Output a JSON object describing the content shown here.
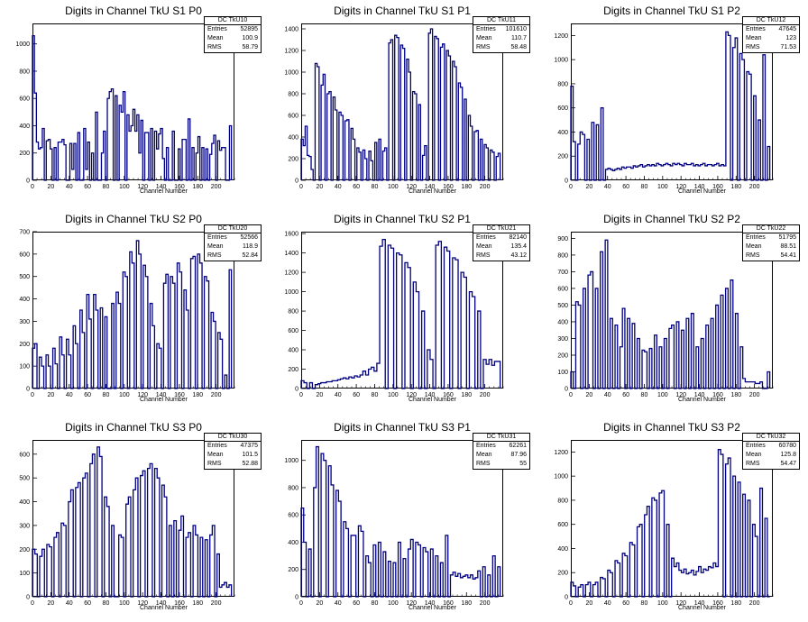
{
  "chart_data": [
    {
      "type": "histogram",
      "title": "Digits in Channel TkU S1 P0",
      "xlabel": "Channel Number",
      "stats_name": "DC_TkU10",
      "stats": {
        "Entries": "52895",
        "Mean": "100.9",
        "RMS": "58.79"
      },
      "xlim": [
        0,
        220
      ],
      "ylim": [
        0,
        1150
      ],
      "xticks": [
        0,
        20,
        40,
        60,
        80,
        100,
        120,
        140,
        160,
        180,
        200
      ],
      "yticks": [
        0,
        200,
        400,
        600,
        800,
        1000
      ],
      "values": [
        1060,
        640,
        280,
        230,
        240,
        380,
        0,
        290,
        300,
        230,
        0,
        240,
        0,
        280,
        280,
        300,
        260,
        0,
        0,
        270,
        80,
        270,
        0,
        350,
        0,
        0,
        380,
        80,
        280,
        0,
        200,
        0,
        500,
        0,
        0,
        200,
        360,
        0,
        600,
        650,
        670,
        0,
        620,
        0,
        550,
        500,
        650,
        0,
        480,
        360,
        400,
        520,
        360,
        480,
        200,
        440,
        0,
        350,
        350,
        0,
        380,
        0,
        360,
        230,
        340,
        380,
        160,
        0,
        240,
        0,
        0,
        360,
        0,
        0,
        230,
        0,
        300,
        300,
        0,
        450,
        0,
        240,
        0,
        200,
        320,
        0,
        240,
        0,
        230,
        0,
        190,
        270,
        330,
        0,
        290,
        220,
        240,
        240,
        0,
        0,
        400
      ]
    },
    {
      "type": "histogram",
      "title": "Digits in Channel TkU S1 P1",
      "xlabel": "Channel Number",
      "stats_name": "DC_TkU11",
      "stats": {
        "Entries": "101610",
        "Mean": "110.7",
        "RMS": "58.48"
      },
      "xlim": [
        0,
        220
      ],
      "ylim": [
        0,
        1450
      ],
      "xticks": [
        0,
        20,
        40,
        60,
        80,
        100,
        120,
        140,
        160,
        180,
        200
      ],
      "yticks": [
        0,
        200,
        400,
        600,
        800,
        1000,
        1200,
        1400
      ],
      "values": [
        380,
        320,
        500,
        230,
        220,
        100,
        0,
        1080,
        1050,
        0,
        880,
        980,
        0,
        800,
        820,
        0,
        770,
        650,
        0,
        630,
        600,
        0,
        550,
        560,
        0,
        480,
        380,
        0,
        300,
        260,
        0,
        280,
        200,
        0,
        270,
        180,
        0,
        350,
        0,
        380,
        0,
        270,
        300,
        0,
        1270,
        1300,
        0,
        1340,
        1320,
        0,
        1250,
        1220,
        0,
        1120,
        1000,
        0,
        820,
        800,
        0,
        700,
        0,
        230,
        320,
        0,
        1360,
        1400,
        0,
        1330,
        1310,
        0,
        1230,
        1260,
        0,
        1200,
        1150,
        0,
        1100,
        1050,
        0,
        900,
        860,
        0,
        750,
        0,
        600,
        500,
        0,
        450,
        460,
        0,
        380,
        0,
        330,
        300,
        0,
        280,
        260,
        0,
        220,
        250
      ]
    },
    {
      "type": "histogram",
      "title": "Digits in Channel TkU S1 P2",
      "xlabel": "Channel Number",
      "stats_name": "DC_TkU12",
      "stats": {
        "Entries": "47645",
        "Mean": "123",
        "RMS": "71.53"
      },
      "xlim": [
        0,
        220
      ],
      "ylim": [
        0,
        1300
      ],
      "xticks": [
        0,
        20,
        40,
        60,
        80,
        100,
        120,
        140,
        160,
        180,
        200
      ],
      "yticks": [
        0,
        200,
        400,
        600,
        800,
        1000,
        1200
      ],
      "values": [
        780,
        320,
        0,
        300,
        400,
        380,
        0,
        340,
        0,
        480,
        0,
        460,
        0,
        600,
        0,
        90,
        100,
        90,
        80,
        90,
        100,
        90,
        110,
        100,
        110,
        110,
        100,
        120,
        110,
        120,
        130,
        110,
        120,
        130,
        120,
        130,
        120,
        140,
        130,
        120,
        130,
        140,
        130,
        120,
        140,
        130,
        140,
        130,
        120,
        140,
        130,
        130,
        140,
        120,
        130,
        120,
        130,
        140,
        120,
        130,
        130,
        120,
        130,
        140,
        120,
        130,
        120,
        1230,
        1200,
        0,
        1100,
        1180,
        0,
        1050,
        1000,
        0,
        900,
        880,
        0,
        700,
        0,
        500,
        0,
        1040,
        0,
        280
      ]
    },
    {
      "type": "histogram",
      "title": "Digits in Channel TkU S2 P0",
      "xlabel": "Channel Number",
      "stats_name": "DC_TkU20",
      "stats": {
        "Entries": "52566",
        "Mean": "118.9",
        "RMS": "52.84"
      },
      "xlim": [
        0,
        220
      ],
      "ylim": [
        0,
        700
      ],
      "xticks": [
        0,
        20,
        40,
        60,
        80,
        100,
        120,
        140,
        160,
        180,
        200
      ],
      "yticks": [
        0,
        100,
        200,
        300,
        400,
        500,
        600,
        700
      ],
      "values": [
        180,
        200,
        0,
        140,
        100,
        0,
        150,
        100,
        0,
        180,
        110,
        0,
        230,
        150,
        0,
        220,
        150,
        0,
        280,
        200,
        0,
        350,
        250,
        0,
        420,
        310,
        0,
        420,
        350,
        0,
        360,
        0,
        320,
        0,
        0,
        380,
        0,
        430,
        380,
        0,
        520,
        500,
        0,
        610,
        560,
        0,
        660,
        600,
        0,
        550,
        500,
        0,
        380,
        280,
        0,
        200,
        180,
        0,
        470,
        510,
        0,
        500,
        470,
        0,
        560,
        520,
        0,
        440,
        350,
        0,
        580,
        590,
        0,
        600,
        560,
        0,
        500,
        480,
        0,
        340,
        300,
        0,
        250,
        220,
        0,
        60,
        0,
        530
      ]
    },
    {
      "type": "histogram",
      "title": "Digits in Channel TkU S2 P1",
      "xlabel": "Channel Number",
      "stats_name": "DC_TkU21",
      "stats": {
        "Entries": "82140",
        "Mean": "135.4",
        "RMS": "43.12"
      },
      "xlim": [
        0,
        220
      ],
      "ylim": [
        0,
        1620
      ],
      "xticks": [
        0,
        20,
        40,
        60,
        80,
        100,
        120,
        140,
        160,
        180,
        200
      ],
      "yticks": [
        0,
        200,
        400,
        600,
        800,
        1000,
        1200,
        1400,
        1600
      ],
      "values": [
        80,
        60,
        0,
        60,
        0,
        40,
        50,
        60,
        60,
        70,
        70,
        80,
        80,
        90,
        100,
        110,
        100,
        120,
        110,
        130,
        120,
        140,
        180,
        140,
        200,
        220,
        180,
        260,
        1470,
        1540,
        0,
        1480,
        1450,
        0,
        1400,
        1380,
        0,
        1300,
        1250,
        0,
        1100,
        1000,
        0,
        800,
        0,
        400,
        300,
        0,
        1480,
        1520,
        0,
        1460,
        1420,
        0,
        1350,
        1330,
        0,
        1200,
        1150,
        0,
        1000,
        950,
        0,
        800,
        0,
        300,
        250,
        300,
        240,
        280,
        280
      ]
    },
    {
      "type": "histogram",
      "title": "Digits in Channel TkU S2 P2",
      "xlabel": "Channel Number",
      "stats_name": "DC_TkU22",
      "stats": {
        "Entries": "51795",
        "Mean": "88.51",
        "RMS": "54.41"
      },
      "xlim": [
        0,
        220
      ],
      "ylim": [
        0,
        940
      ],
      "xticks": [
        0,
        20,
        40,
        60,
        80,
        100,
        120,
        140,
        160,
        180,
        200
      ],
      "yticks": [
        0,
        100,
        200,
        300,
        400,
        500,
        600,
        700,
        800,
        900
      ],
      "values": [
        100,
        0,
        520,
        500,
        0,
        600,
        0,
        680,
        700,
        0,
        600,
        0,
        820,
        0,
        890,
        0,
        420,
        0,
        380,
        0,
        250,
        480,
        0,
        420,
        0,
        390,
        0,
        300,
        0,
        230,
        220,
        0,
        240,
        0,
        320,
        0,
        250,
        0,
        300,
        0,
        360,
        380,
        0,
        400,
        0,
        350,
        0,
        420,
        0,
        450,
        0,
        250,
        0,
        300,
        0,
        380,
        0,
        420,
        0,
        500,
        0,
        560,
        0,
        600,
        0,
        650,
        0,
        450,
        0,
        250,
        60,
        40,
        40,
        40,
        40,
        30,
        30,
        40,
        0,
        0,
        100
      ]
    },
    {
      "type": "histogram",
      "title": "Digits in Channel TkU S3 P0",
      "xlabel": "Channel Number",
      "stats_name": "DC_TkU30",
      "stats": {
        "Entries": "47375",
        "Mean": "101.5",
        "RMS": "52.88"
      },
      "xlim": [
        0,
        220
      ],
      "ylim": [
        0,
        660
      ],
      "xticks": [
        0,
        20,
        40,
        60,
        80,
        100,
        120,
        140,
        160,
        180,
        200
      ],
      "yticks": [
        0,
        100,
        200,
        300,
        400,
        500,
        600
      ],
      "values": [
        200,
        180,
        0,
        170,
        200,
        0,
        220,
        210,
        0,
        250,
        270,
        0,
        310,
        300,
        0,
        400,
        450,
        0,
        460,
        480,
        0,
        500,
        520,
        0,
        560,
        600,
        0,
        630,
        590,
        0,
        420,
        380,
        0,
        300,
        0,
        0,
        260,
        250,
        0,
        390,
        420,
        0,
        450,
        500,
        0,
        510,
        530,
        0,
        540,
        560,
        0,
        540,
        500,
        0,
        470,
        420,
        0,
        300,
        0,
        320,
        0,
        280,
        340,
        0,
        250,
        270,
        0,
        300,
        260,
        0,
        250,
        0,
        240,
        0,
        260,
        300,
        0,
        180,
        40,
        50,
        60,
        40,
        50
      ]
    },
    {
      "type": "histogram",
      "title": "Digits in Channel TkU S3 P1",
      "xlabel": "Channel Number",
      "stats_name": "DC_TkU31",
      "stats": {
        "Entries": "62261",
        "Mean": "87.96",
        "RMS": "55"
      },
      "xlim": [
        0,
        220
      ],
      "ylim": [
        0,
        1150
      ],
      "xticks": [
        0,
        20,
        40,
        60,
        80,
        100,
        120,
        140,
        160,
        180,
        200
      ],
      "yticks": [
        0,
        200,
        400,
        600,
        800,
        1000
      ],
      "values": [
        650,
        400,
        0,
        350,
        0,
        800,
        1100,
        0,
        1050,
        1000,
        0,
        960,
        820,
        0,
        780,
        700,
        0,
        550,
        500,
        0,
        450,
        450,
        0,
        520,
        480,
        0,
        300,
        250,
        0,
        380,
        0,
        400,
        0,
        330,
        0,
        260,
        0,
        250,
        0,
        400,
        0,
        280,
        0,
        350,
        420,
        0,
        400,
        380,
        0,
        360,
        330,
        0,
        350,
        0,
        300,
        0,
        250,
        0,
        450,
        0,
        160,
        180,
        150,
        170,
        140,
        150,
        160,
        140,
        160,
        130,
        140,
        190,
        0,
        220,
        0,
        160,
        0,
        300,
        0,
        220
      ]
    },
    {
      "type": "histogram",
      "title": "Digits in Channel TkU S3 P2",
      "xlabel": "Channel Number",
      "stats_name": "DC_TkU32",
      "stats": {
        "Entries": "60780",
        "Mean": "125.8",
        "RMS": "54.47"
      },
      "xlim": [
        0,
        220
      ],
      "ylim": [
        0,
        1300
      ],
      "xticks": [
        0,
        20,
        40,
        60,
        80,
        100,
        120,
        140,
        160,
        180,
        200
      ],
      "yticks": [
        0,
        200,
        400,
        600,
        800,
        1000,
        1200
      ],
      "values": [
        120,
        90,
        0,
        80,
        100,
        0,
        100,
        120,
        0,
        100,
        120,
        0,
        160,
        150,
        0,
        220,
        200,
        0,
        300,
        280,
        0,
        360,
        340,
        0,
        450,
        430,
        0,
        580,
        600,
        0,
        680,
        750,
        0,
        820,
        800,
        0,
        860,
        880,
        0,
        600,
        0,
        320,
        250,
        280,
        220,
        200,
        230,
        190,
        200,
        220,
        180,
        210,
        250,
        200,
        230,
        220,
        250,
        240,
        280,
        250,
        1220,
        1180,
        0,
        1100,
        1150,
        0,
        1000,
        0,
        950,
        0,
        850,
        0,
        800,
        0,
        600,
        500,
        0,
        900,
        0,
        650,
        0
      ]
    }
  ]
}
